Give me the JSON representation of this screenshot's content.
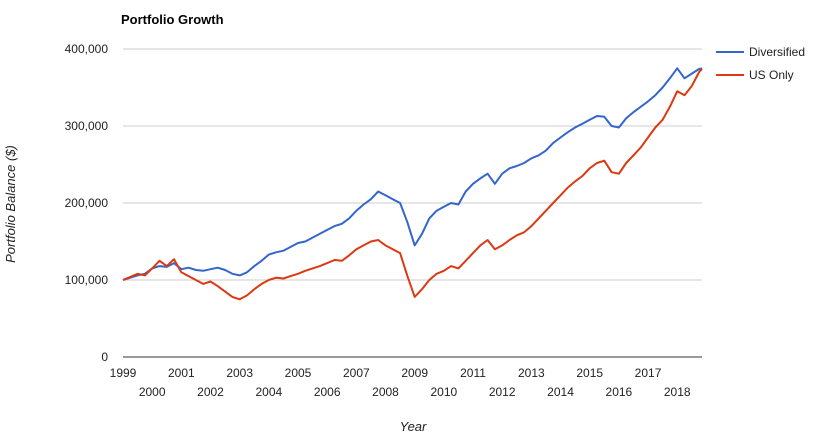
{
  "chart_data": {
    "type": "line",
    "title": "Portfolio Growth",
    "xlabel": "Year",
    "ylabel": "Portfolio Balance ($)",
    "xlim": [
      1999,
      2018.85
    ],
    "ylim": [
      0,
      400000
    ],
    "y_ticks": [
      {
        "value": 0,
        "label": "0"
      },
      {
        "value": 100000,
        "label": "100,000"
      },
      {
        "value": 200000,
        "label": "200,000"
      },
      {
        "value": 300000,
        "label": "300,000"
      },
      {
        "value": 400000,
        "label": "400,000"
      }
    ],
    "x_ticks": [
      {
        "value": 1999,
        "label": "1999"
      },
      {
        "value": 2000,
        "label": "2000"
      },
      {
        "value": 2001,
        "label": "2001"
      },
      {
        "value": 2002,
        "label": "2002"
      },
      {
        "value": 2003,
        "label": "2003"
      },
      {
        "value": 2004,
        "label": "2004"
      },
      {
        "value": 2005,
        "label": "2005"
      },
      {
        "value": 2006,
        "label": "2006"
      },
      {
        "value": 2007,
        "label": "2007"
      },
      {
        "value": 2008,
        "label": "2008"
      },
      {
        "value": 2009,
        "label": "2009"
      },
      {
        "value": 2010,
        "label": "2010"
      },
      {
        "value": 2011,
        "label": "2011"
      },
      {
        "value": 2012,
        "label": "2012"
      },
      {
        "value": 2013,
        "label": "2013"
      },
      {
        "value": 2014,
        "label": "2014"
      },
      {
        "value": 2015,
        "label": "2015"
      },
      {
        "value": 2016,
        "label": "2016"
      },
      {
        "value": 2017,
        "label": "2017"
      },
      {
        "value": 2018,
        "label": "2018"
      }
    ],
    "grid": true,
    "legend_position": "right",
    "series": [
      {
        "name": "Diversified",
        "color": "#3366cc",
        "points": [
          [
            1999.0,
            100000
          ],
          [
            1999.25,
            103000
          ],
          [
            1999.5,
            106000
          ],
          [
            1999.75,
            108000
          ],
          [
            2000.0,
            115000
          ],
          [
            2000.25,
            118000
          ],
          [
            2000.5,
            117000
          ],
          [
            2000.75,
            122000
          ],
          [
            2001.0,
            114000
          ],
          [
            2001.25,
            116000
          ],
          [
            2001.5,
            113000
          ],
          [
            2001.75,
            112000
          ],
          [
            2002.0,
            114000
          ],
          [
            2002.25,
            116000
          ],
          [
            2002.5,
            113000
          ],
          [
            2002.75,
            108000
          ],
          [
            2003.0,
            106000
          ],
          [
            2003.25,
            110000
          ],
          [
            2003.5,
            118000
          ],
          [
            2003.75,
            125000
          ],
          [
            2004.0,
            133000
          ],
          [
            2004.25,
            136000
          ],
          [
            2004.5,
            138000
          ],
          [
            2004.75,
            143000
          ],
          [
            2005.0,
            148000
          ],
          [
            2005.25,
            150000
          ],
          [
            2005.5,
            155000
          ],
          [
            2005.75,
            160000
          ],
          [
            2006.0,
            165000
          ],
          [
            2006.25,
            170000
          ],
          [
            2006.5,
            173000
          ],
          [
            2006.75,
            180000
          ],
          [
            2007.0,
            190000
          ],
          [
            2007.25,
            198000
          ],
          [
            2007.5,
            205000
          ],
          [
            2007.75,
            215000
          ],
          [
            2008.0,
            210000
          ],
          [
            2008.25,
            205000
          ],
          [
            2008.5,
            200000
          ],
          [
            2008.75,
            175000
          ],
          [
            2009.0,
            145000
          ],
          [
            2009.25,
            160000
          ],
          [
            2009.5,
            180000
          ],
          [
            2009.75,
            190000
          ],
          [
            2010.0,
            195000
          ],
          [
            2010.25,
            200000
          ],
          [
            2010.5,
            198000
          ],
          [
            2010.75,
            215000
          ],
          [
            2011.0,
            225000
          ],
          [
            2011.25,
            232000
          ],
          [
            2011.5,
            238000
          ],
          [
            2011.75,
            225000
          ],
          [
            2012.0,
            238000
          ],
          [
            2012.25,
            245000
          ],
          [
            2012.5,
            248000
          ],
          [
            2012.75,
            252000
          ],
          [
            2013.0,
            258000
          ],
          [
            2013.25,
            262000
          ],
          [
            2013.5,
            268000
          ],
          [
            2013.75,
            278000
          ],
          [
            2014.0,
            285000
          ],
          [
            2014.25,
            292000
          ],
          [
            2014.5,
            298000
          ],
          [
            2014.75,
            303000
          ],
          [
            2015.0,
            308000
          ],
          [
            2015.25,
            313000
          ],
          [
            2015.5,
            312000
          ],
          [
            2015.75,
            300000
          ],
          [
            2016.0,
            298000
          ],
          [
            2016.25,
            310000
          ],
          [
            2016.5,
            318000
          ],
          [
            2016.75,
            325000
          ],
          [
            2017.0,
            332000
          ],
          [
            2017.25,
            340000
          ],
          [
            2017.5,
            350000
          ],
          [
            2017.75,
            362000
          ],
          [
            2018.0,
            375000
          ],
          [
            2018.25,
            362000
          ],
          [
            2018.5,
            368000
          ],
          [
            2018.75,
            374000
          ],
          [
            2018.85,
            375000
          ]
        ]
      },
      {
        "name": "US Only",
        "color": "#dc3912",
        "points": [
          [
            1999.0,
            100000
          ],
          [
            1999.25,
            104000
          ],
          [
            1999.5,
            108000
          ],
          [
            1999.75,
            106000
          ],
          [
            2000.0,
            115000
          ],
          [
            2000.25,
            125000
          ],
          [
            2000.5,
            118000
          ],
          [
            2000.75,
            127000
          ],
          [
            2001.0,
            110000
          ],
          [
            2001.25,
            105000
          ],
          [
            2001.5,
            100000
          ],
          [
            2001.75,
            95000
          ],
          [
            2002.0,
            98000
          ],
          [
            2002.25,
            92000
          ],
          [
            2002.5,
            85000
          ],
          [
            2002.75,
            78000
          ],
          [
            2003.0,
            75000
          ],
          [
            2003.25,
            80000
          ],
          [
            2003.5,
            88000
          ],
          [
            2003.75,
            95000
          ],
          [
            2004.0,
            100000
          ],
          [
            2004.25,
            103000
          ],
          [
            2004.5,
            102000
          ],
          [
            2004.75,
            105000
          ],
          [
            2005.0,
            108000
          ],
          [
            2005.25,
            112000
          ],
          [
            2005.5,
            115000
          ],
          [
            2005.75,
            118000
          ],
          [
            2006.0,
            122000
          ],
          [
            2006.25,
            126000
          ],
          [
            2006.5,
            125000
          ],
          [
            2006.75,
            132000
          ],
          [
            2007.0,
            140000
          ],
          [
            2007.25,
            145000
          ],
          [
            2007.5,
            150000
          ],
          [
            2007.75,
            152000
          ],
          [
            2008.0,
            145000
          ],
          [
            2008.25,
            140000
          ],
          [
            2008.5,
            135000
          ],
          [
            2008.75,
            105000
          ],
          [
            2009.0,
            78000
          ],
          [
            2009.25,
            88000
          ],
          [
            2009.5,
            100000
          ],
          [
            2009.75,
            108000
          ],
          [
            2010.0,
            112000
          ],
          [
            2010.25,
            118000
          ],
          [
            2010.5,
            115000
          ],
          [
            2010.75,
            125000
          ],
          [
            2011.0,
            135000
          ],
          [
            2011.25,
            145000
          ],
          [
            2011.5,
            152000
          ],
          [
            2011.75,
            140000
          ],
          [
            2012.0,
            145000
          ],
          [
            2012.25,
            152000
          ],
          [
            2012.5,
            158000
          ],
          [
            2012.75,
            162000
          ],
          [
            2013.0,
            170000
          ],
          [
            2013.25,
            180000
          ],
          [
            2013.5,
            190000
          ],
          [
            2013.75,
            200000
          ],
          [
            2014.0,
            210000
          ],
          [
            2014.25,
            220000
          ],
          [
            2014.5,
            228000
          ],
          [
            2014.75,
            235000
          ],
          [
            2015.0,
            245000
          ],
          [
            2015.25,
            252000
          ],
          [
            2015.5,
            255000
          ],
          [
            2015.75,
            240000
          ],
          [
            2016.0,
            238000
          ],
          [
            2016.25,
            252000
          ],
          [
            2016.5,
            262000
          ],
          [
            2016.75,
            272000
          ],
          [
            2017.0,
            285000
          ],
          [
            2017.25,
            298000
          ],
          [
            2017.5,
            308000
          ],
          [
            2017.75,
            325000
          ],
          [
            2018.0,
            345000
          ],
          [
            2018.25,
            340000
          ],
          [
            2018.5,
            352000
          ],
          [
            2018.75,
            370000
          ],
          [
            2018.85,
            374000
          ]
        ]
      }
    ]
  }
}
